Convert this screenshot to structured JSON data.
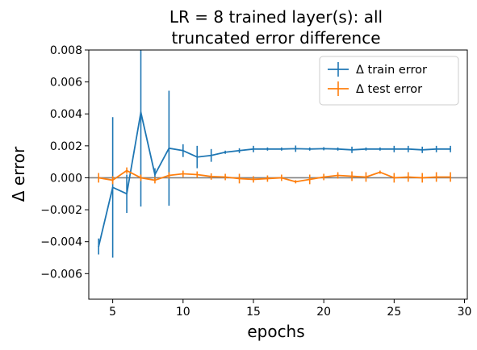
{
  "chart_data": {
    "type": "line",
    "title": [
      "LR = 8 trained layer(s): all",
      "truncated error difference"
    ],
    "xlabel": "epochs",
    "ylabel": "Δ error",
    "xlim": [
      3.3,
      30.2
    ],
    "ylim": [
      -0.0076,
      0.008
    ],
    "xticks": [
      5,
      10,
      15,
      20,
      25,
      30
    ],
    "yticks": [
      -0.006,
      -0.004,
      -0.002,
      0.0,
      0.002,
      0.004,
      0.006,
      0.008
    ],
    "ytick_labels": [
      "−0.006",
      "−0.004",
      "−0.002",
      "0.000",
      "0.002",
      "0.004",
      "0.006",
      "0.008"
    ],
    "reference_line_y": 0,
    "legend_position": "top-right",
    "series": [
      {
        "name": "Δ train error",
        "color": "#1f77b4",
        "x": [
          4,
          5,
          6,
          7,
          8,
          9,
          10,
          11,
          12,
          13,
          14,
          15,
          16,
          17,
          18,
          19,
          20,
          21,
          22,
          23,
          24,
          25,
          26,
          27,
          28,
          29
        ],
        "y": [
          -0.0043,
          -0.0006,
          -0.001,
          0.0041,
          0.0002,
          0.00185,
          0.0017,
          0.0013,
          0.0014,
          0.0016,
          0.0017,
          0.0018,
          0.0018,
          0.0018,
          0.00182,
          0.0018,
          0.00182,
          0.0018,
          0.00175,
          0.0018,
          0.0018,
          0.0018,
          0.0018,
          0.00175,
          0.0018,
          0.0018
        ],
        "err": [
          0.0005,
          0.0044,
          0.0012,
          0.0059,
          0.0004,
          0.0036,
          0.0004,
          0.0007,
          0.0004,
          0.0001,
          0.00015,
          0.0002,
          0.0001,
          0.0001,
          0.0002,
          0.0001,
          0.0001,
          0.0001,
          0.0002,
          0.0001,
          0.0001,
          0.0002,
          0.0002,
          0.0002,
          0.0002,
          0.0002
        ]
      },
      {
        "name": "Δ test error",
        "color": "#ff7f0e",
        "x": [
          4,
          5,
          6,
          7,
          8,
          9,
          10,
          11,
          12,
          13,
          14,
          15,
          16,
          17,
          18,
          19,
          20,
          21,
          22,
          23,
          24,
          25,
          26,
          27,
          28,
          29
        ],
        "y": [
          0.0,
          -0.00015,
          0.00045,
          0.0,
          -0.00015,
          0.00015,
          0.00025,
          0.0002,
          8e-05,
          5e-05,
          -5e-05,
          -0.0001,
          -5e-05,
          0.0,
          -0.00025,
          -0.0001,
          5e-05,
          0.00015,
          0.0001,
          5e-05,
          0.00035,
          0.0,
          5e-05,
          0.0,
          5e-05,
          5e-05
        ],
        "err": [
          0.0003,
          0.00025,
          0.0002,
          0.0002,
          0.0002,
          0.0002,
          0.0002,
          0.0002,
          0.0002,
          0.0002,
          0.0003,
          0.0002,
          0.0002,
          0.0002,
          0.0001,
          0.0003,
          0.0002,
          0.0002,
          0.0003,
          0.0003,
          0.0001,
          0.0003,
          0.0003,
          0.0003,
          0.0003,
          0.0003
        ]
      }
    ]
  }
}
